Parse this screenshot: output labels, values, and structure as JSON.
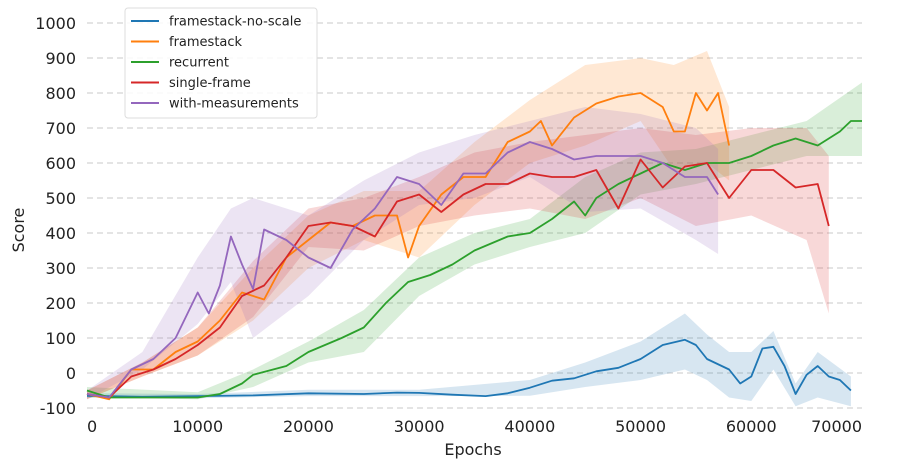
{
  "chart_data": {
    "type": "line",
    "xlabel": "Epochs",
    "ylabel": "Score",
    "xlim": [
      0,
      70000
    ],
    "ylim": [
      -100,
      1000
    ],
    "xticks": [
      0,
      10000,
      20000,
      30000,
      40000,
      50000,
      60000,
      70000
    ],
    "yticks": [
      -100,
      0,
      100,
      200,
      300,
      400,
      500,
      600,
      700,
      800,
      900,
      1000
    ],
    "grid": "horizontal dashed",
    "legend": "top-left",
    "series": [
      {
        "name": "framestack-no-scale",
        "color": "#1f77b4",
        "points": [
          [
            0,
            -65
          ],
          [
            5000,
            -68
          ],
          [
            10000,
            -66
          ],
          [
            15000,
            -64
          ],
          [
            20000,
            -58
          ],
          [
            25000,
            -60
          ],
          [
            28000,
            -56
          ],
          [
            30000,
            -57
          ],
          [
            33000,
            -62
          ],
          [
            36000,
            -66
          ],
          [
            38000,
            -58
          ],
          [
            40000,
            -42
          ],
          [
            42000,
            -22
          ],
          [
            44000,
            -15
          ],
          [
            46000,
            5
          ],
          [
            48000,
            15
          ],
          [
            50000,
            40
          ],
          [
            52000,
            80
          ],
          [
            54000,
            95
          ],
          [
            55000,
            80
          ],
          [
            56000,
            40
          ],
          [
            58000,
            10
          ],
          [
            59000,
            -30
          ],
          [
            60000,
            -10
          ],
          [
            61000,
            70
          ],
          [
            62000,
            75
          ],
          [
            63000,
            20
          ],
          [
            64000,
            -60
          ],
          [
            65000,
            -5
          ],
          [
            66000,
            20
          ],
          [
            67000,
            -10
          ],
          [
            68000,
            -20
          ],
          [
            69000,
            -50
          ]
        ],
        "band": [
          [
            0,
            -70,
            -58
          ],
          [
            10000,
            -72,
            -60
          ],
          [
            20000,
            -66,
            -48
          ],
          [
            30000,
            -66,
            -48
          ],
          [
            40000,
            -65,
            -20
          ],
          [
            45000,
            -40,
            30
          ],
          [
            50000,
            -20,
            90
          ],
          [
            54000,
            10,
            170
          ],
          [
            56000,
            -20,
            110
          ],
          [
            58000,
            -70,
            60
          ],
          [
            60000,
            -80,
            60
          ],
          [
            62000,
            10,
            120
          ],
          [
            64000,
            -95,
            -30
          ],
          [
            66000,
            -70,
            60
          ],
          [
            69000,
            -95,
            -10
          ]
        ]
      },
      {
        "name": "framestack",
        "color": "#ff7f0e",
        "points": [
          [
            0,
            -60
          ],
          [
            2000,
            -75
          ],
          [
            4000,
            10
          ],
          [
            6000,
            10
          ],
          [
            8000,
            60
          ],
          [
            10000,
            90
          ],
          [
            12000,
            150
          ],
          [
            14000,
            230
          ],
          [
            16000,
            210
          ],
          [
            18000,
            330
          ],
          [
            20000,
            380
          ],
          [
            22000,
            430
          ],
          [
            24000,
            420
          ],
          [
            26000,
            450
          ],
          [
            28000,
            450
          ],
          [
            29000,
            330
          ],
          [
            30000,
            420
          ],
          [
            32000,
            510
          ],
          [
            34000,
            560
          ],
          [
            36000,
            560
          ],
          [
            38000,
            660
          ],
          [
            40000,
            690
          ],
          [
            41000,
            720
          ],
          [
            42000,
            650
          ],
          [
            44000,
            730
          ],
          [
            46000,
            770
          ],
          [
            48000,
            790
          ],
          [
            50000,
            800
          ],
          [
            52000,
            760
          ],
          [
            53000,
            690
          ],
          [
            54000,
            690
          ],
          [
            55000,
            800
          ],
          [
            56000,
            750
          ],
          [
            57000,
            800
          ],
          [
            58000,
            650
          ]
        ],
        "band": [
          [
            0,
            -75,
            -50
          ],
          [
            5000,
            -10,
            30
          ],
          [
            10000,
            50,
            130
          ],
          [
            15000,
            150,
            300
          ],
          [
            20000,
            300,
            450
          ],
          [
            25000,
            380,
            520
          ],
          [
            30000,
            330,
            520
          ],
          [
            35000,
            480,
            660
          ],
          [
            40000,
            600,
            780
          ],
          [
            45000,
            650,
            880
          ],
          [
            50000,
            720,
            900
          ],
          [
            53000,
            580,
            880
          ],
          [
            56000,
            600,
            920
          ],
          [
            58000,
            550,
            760
          ]
        ]
      },
      {
        "name": "recurrent",
        "color": "#2ca02c",
        "points": [
          [
            0,
            -50
          ],
          [
            2000,
            -70
          ],
          [
            5000,
            -70
          ],
          [
            10000,
            -70
          ],
          [
            12000,
            -60
          ],
          [
            14000,
            -30
          ],
          [
            15000,
            -5
          ],
          [
            18000,
            20
          ],
          [
            20000,
            60
          ],
          [
            23000,
            100
          ],
          [
            25000,
            130
          ],
          [
            27000,
            200
          ],
          [
            29000,
            260
          ],
          [
            31000,
            280
          ],
          [
            33000,
            310
          ],
          [
            35000,
            350
          ],
          [
            38000,
            390
          ],
          [
            40000,
            400
          ],
          [
            42000,
            440
          ],
          [
            44000,
            490
          ],
          [
            45000,
            450
          ],
          [
            46000,
            500
          ],
          [
            48000,
            540
          ],
          [
            50000,
            570
          ],
          [
            52000,
            600
          ],
          [
            54000,
            580
          ],
          [
            56000,
            600
          ],
          [
            58000,
            600
          ],
          [
            60000,
            620
          ],
          [
            62000,
            650
          ],
          [
            64000,
            670
          ],
          [
            66000,
            650
          ],
          [
            68000,
            690
          ],
          [
            69000,
            720
          ],
          [
            70000,
            720
          ]
        ],
        "band": [
          [
            0,
            -70,
            -40
          ],
          [
            10000,
            -75,
            -55
          ],
          [
            15000,
            -40,
            10
          ],
          [
            20000,
            30,
            90
          ],
          [
            25000,
            60,
            180
          ],
          [
            30000,
            220,
            330
          ],
          [
            35000,
            310,
            400
          ],
          [
            40000,
            360,
            440
          ],
          [
            45000,
            400,
            560
          ],
          [
            50000,
            510,
            630
          ],
          [
            55000,
            540,
            640
          ],
          [
            60000,
            580,
            680
          ],
          [
            65000,
            620,
            720
          ],
          [
            70000,
            620,
            830
          ]
        ]
      },
      {
        "name": "single-frame",
        "color": "#d62728",
        "points": [
          [
            0,
            -60
          ],
          [
            2000,
            -70
          ],
          [
            4000,
            -10
          ],
          [
            6000,
            10
          ],
          [
            8000,
            40
          ],
          [
            10000,
            80
          ],
          [
            12000,
            130
          ],
          [
            14000,
            220
          ],
          [
            16000,
            250
          ],
          [
            18000,
            330
          ],
          [
            20000,
            420
          ],
          [
            22000,
            430
          ],
          [
            24000,
            420
          ],
          [
            26000,
            390
          ],
          [
            28000,
            490
          ],
          [
            30000,
            510
          ],
          [
            32000,
            460
          ],
          [
            34000,
            510
          ],
          [
            36000,
            540
          ],
          [
            38000,
            540
          ],
          [
            40000,
            570
          ],
          [
            42000,
            560
          ],
          [
            44000,
            560
          ],
          [
            46000,
            580
          ],
          [
            48000,
            470
          ],
          [
            50000,
            610
          ],
          [
            52000,
            530
          ],
          [
            54000,
            590
          ],
          [
            56000,
            600
          ],
          [
            58000,
            500
          ],
          [
            60000,
            580
          ],
          [
            62000,
            580
          ],
          [
            64000,
            530
          ],
          [
            66000,
            540
          ],
          [
            67000,
            420
          ]
        ],
        "band": [
          [
            0,
            -75,
            -50
          ],
          [
            5000,
            -10,
            30
          ],
          [
            10000,
            50,
            130
          ],
          [
            15000,
            160,
            320
          ],
          [
            20000,
            360,
            470
          ],
          [
            25000,
            350,
            500
          ],
          [
            30000,
            420,
            560
          ],
          [
            35000,
            450,
            630
          ],
          [
            40000,
            470,
            660
          ],
          [
            45000,
            440,
            680
          ],
          [
            50000,
            500,
            700
          ],
          [
            55000,
            420,
            680
          ],
          [
            60000,
            450,
            700
          ],
          [
            65000,
            380,
            700
          ],
          [
            67000,
            170,
            620
          ]
        ]
      },
      {
        "name": "with-measurements",
        "color": "#9467bd",
        "points": [
          [
            0,
            -60
          ],
          [
            2000,
            -70
          ],
          [
            4000,
            10
          ],
          [
            6000,
            40
          ],
          [
            8000,
            100
          ],
          [
            10000,
            230
          ],
          [
            11000,
            170
          ],
          [
            12000,
            250
          ],
          [
            13000,
            390
          ],
          [
            14000,
            310
          ],
          [
            15000,
            240
          ],
          [
            16000,
            410
          ],
          [
            18000,
            380
          ],
          [
            20000,
            330
          ],
          [
            22000,
            300
          ],
          [
            24000,
            410
          ],
          [
            26000,
            470
          ],
          [
            28000,
            560
          ],
          [
            30000,
            540
          ],
          [
            32000,
            480
          ],
          [
            34000,
            570
          ],
          [
            36000,
            570
          ],
          [
            38000,
            630
          ],
          [
            40000,
            660
          ],
          [
            42000,
            640
          ],
          [
            44000,
            610
          ],
          [
            46000,
            620
          ],
          [
            48000,
            620
          ],
          [
            50000,
            620
          ],
          [
            52000,
            600
          ],
          [
            54000,
            560
          ],
          [
            56000,
            560
          ],
          [
            57000,
            510
          ]
        ],
        "band": [
          [
            0,
            -75,
            -50
          ],
          [
            5000,
            10,
            60
          ],
          [
            10000,
            140,
            330
          ],
          [
            13000,
            260,
            470
          ],
          [
            15000,
            100,
            500
          ],
          [
            20000,
            220,
            450
          ],
          [
            25000,
            380,
            550
          ],
          [
            30000,
            480,
            630
          ],
          [
            35000,
            500,
            680
          ],
          [
            40000,
            560,
            720
          ],
          [
            45000,
            460,
            760
          ],
          [
            50000,
            470,
            740
          ],
          [
            55000,
            380,
            700
          ],
          [
            57000,
            340,
            640
          ]
        ]
      }
    ]
  }
}
